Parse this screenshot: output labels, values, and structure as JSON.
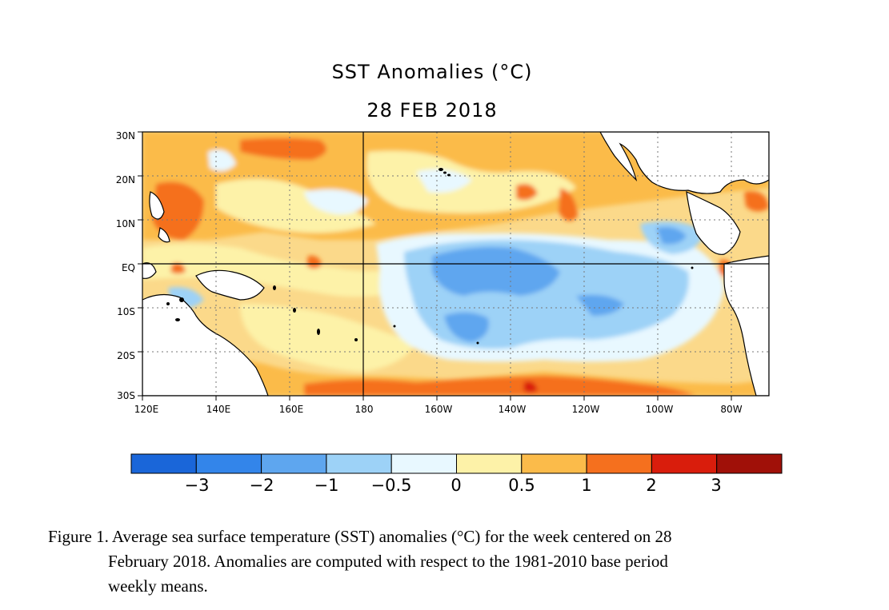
{
  "title": "SST Anomalies (°C)",
  "date": "28 FEB 2018",
  "map": {
    "lat_labels": [
      "30N",
      "20N",
      "10N",
      "EQ",
      "10S",
      "20S",
      "30S"
    ],
    "lon_labels": [
      "120E",
      "140E",
      "160E",
      "180",
      "160W",
      "140W",
      "120W",
      "100W",
      "80W"
    ],
    "lon_range": [
      120,
      290
    ],
    "lat_range": [
      -30,
      30
    ],
    "grid": "dotted",
    "reference_lines": [
      "Equator",
      "180"
    ]
  },
  "colorbar": {
    "labels": [
      "−3",
      "−2",
      "−1",
      "−0.5",
      "0",
      "0.5",
      "1",
      "2",
      "3"
    ],
    "colors": [
      "#1a66d9",
      "#3385ea",
      "#5ea6ef",
      "#9dd2f7",
      "#e8f8ff",
      "#fdf2a8",
      "#fbbb4a",
      "#f5701e",
      "#d91d0c",
      "#a01008"
    ]
  },
  "caption": {
    "line1": "Figure 1. Average sea surface temperature (SST) anomalies (°C) for the week centered on 28",
    "line2": "February 2018.  Anomalies are computed with respect to the 1981-2010 base period",
    "line3": "weekly means."
  }
}
